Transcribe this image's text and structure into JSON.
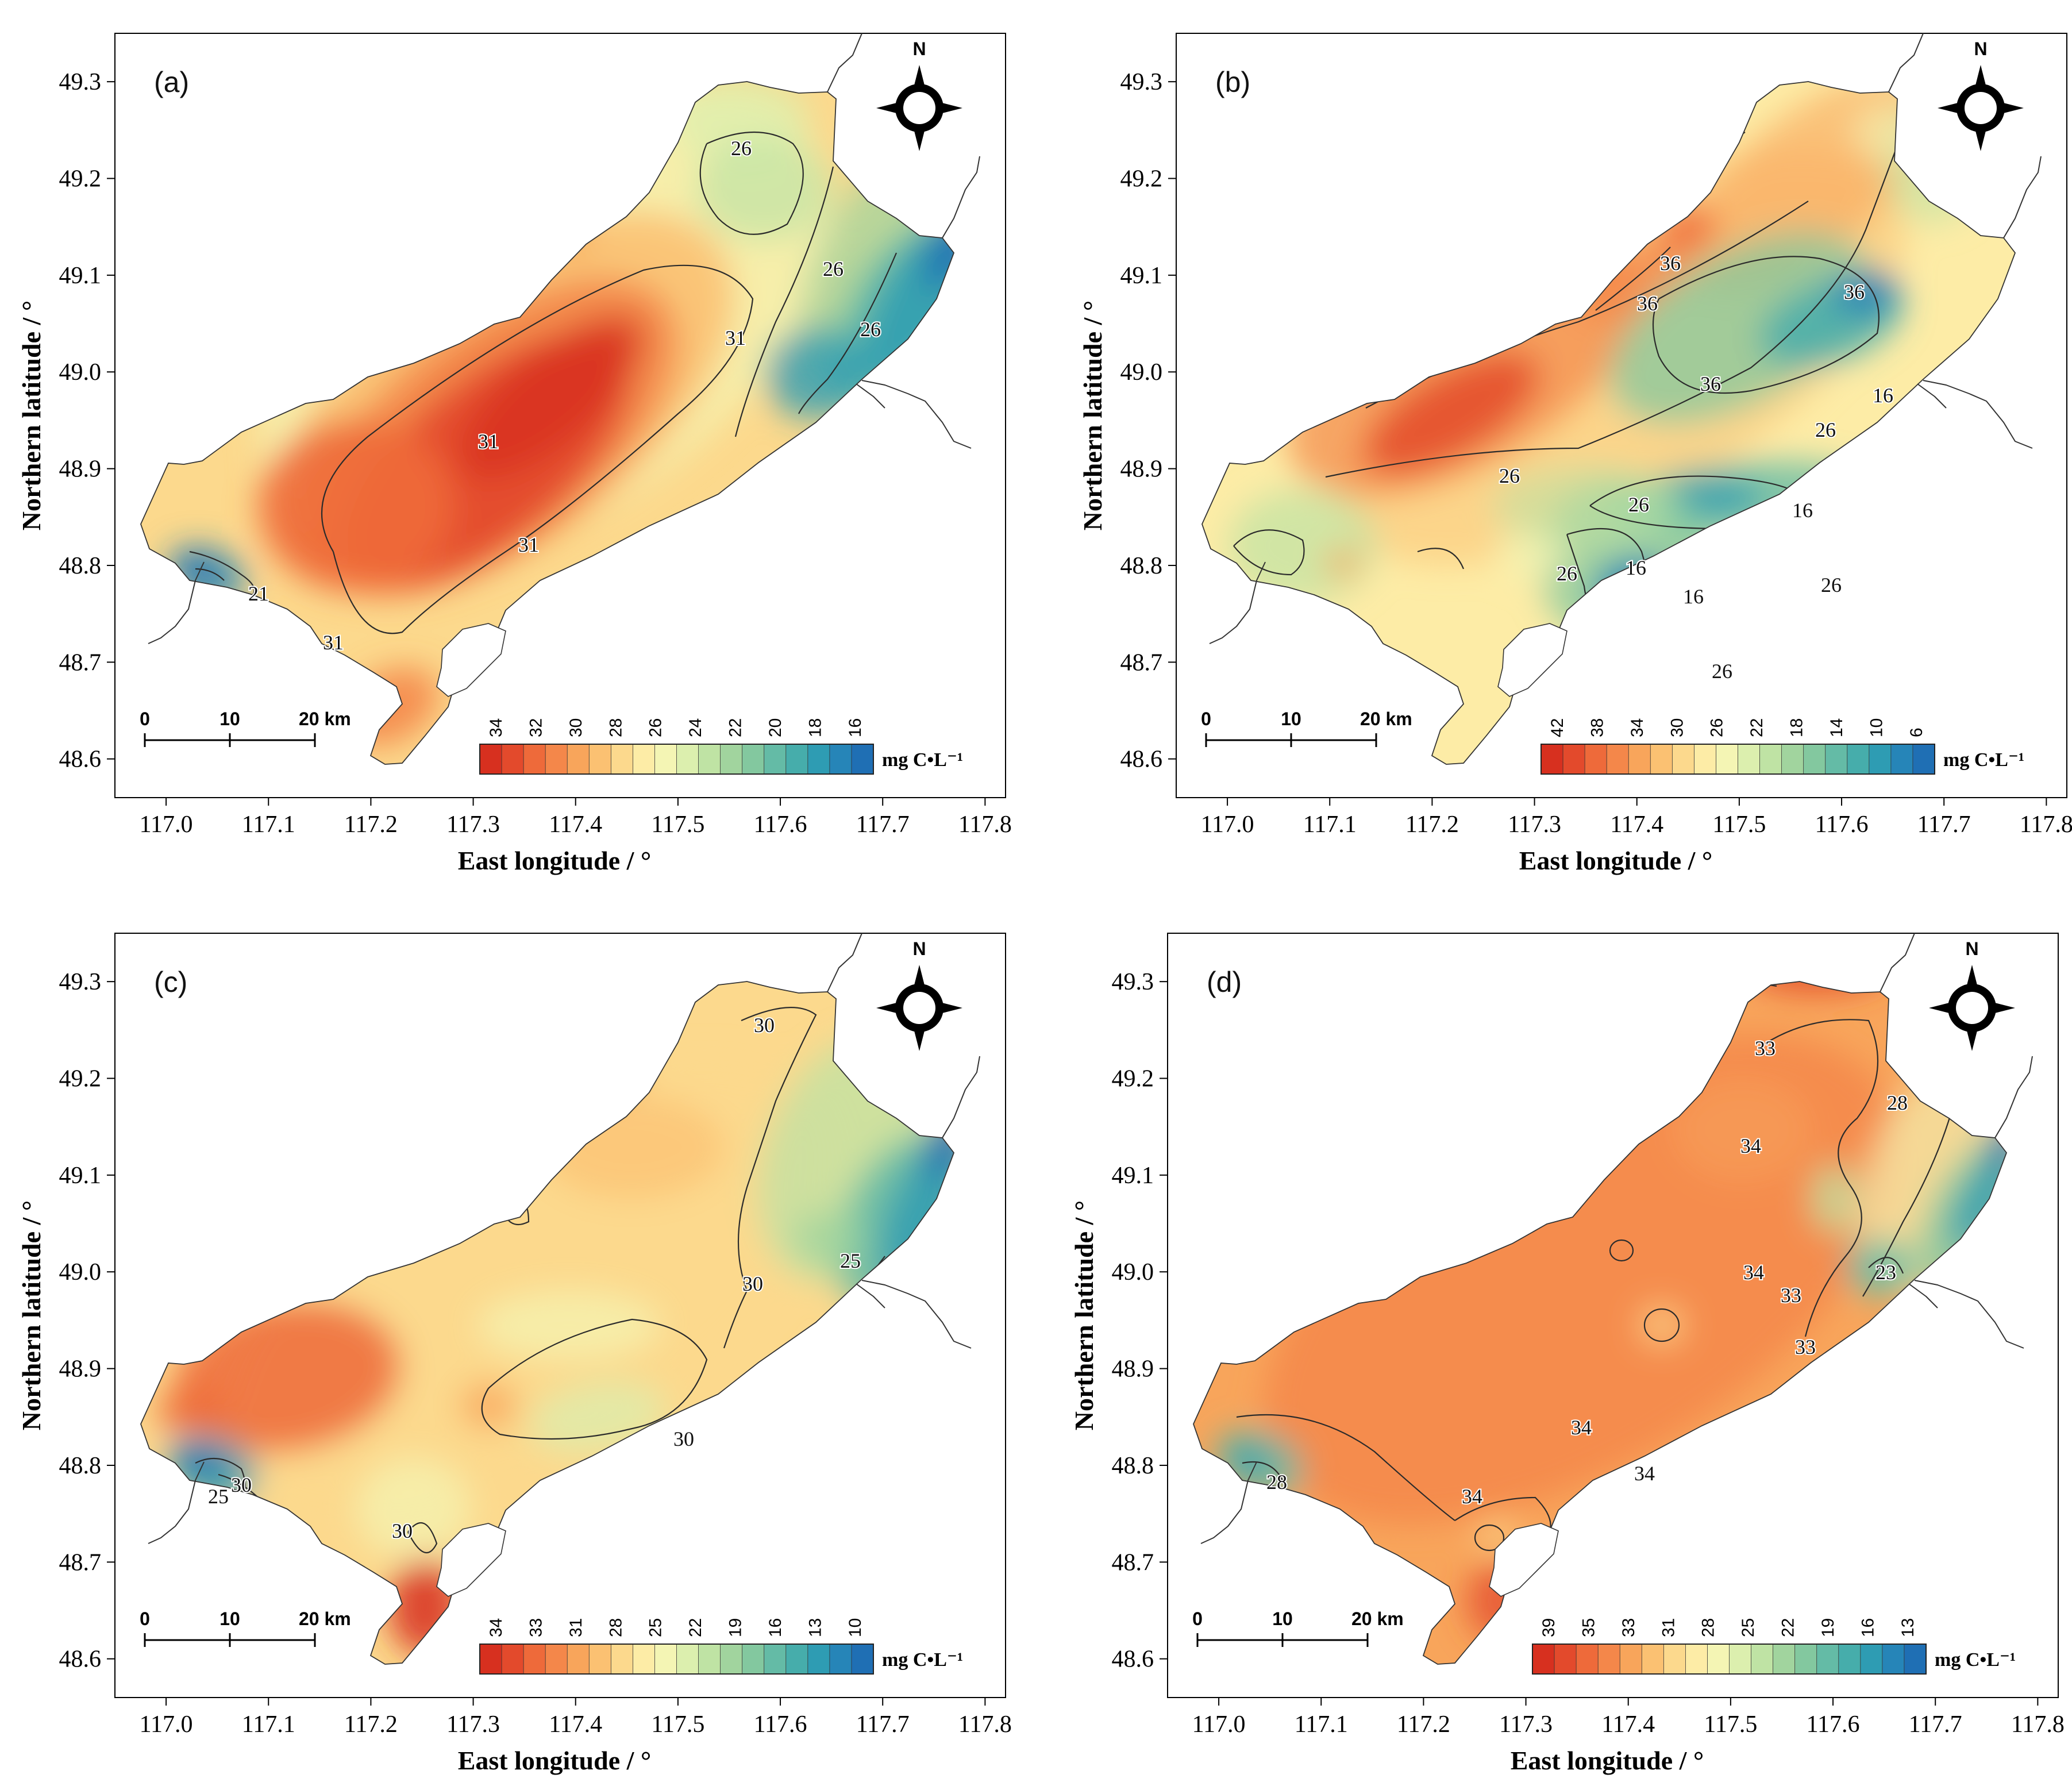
{
  "figure": {
    "x_axis_label": "East longitude / °",
    "y_axis_label": "Northern latitude / °",
    "x_ticks": [
      "117.0",
      "117.1",
      "117.2",
      "117.3",
      "117.4",
      "117.5",
      "117.6",
      "117.7",
      "117.8"
    ],
    "y_ticks": [
      "49.3",
      "49.2",
      "49.1",
      "49.0",
      "48.9",
      "48.8",
      "48.7",
      "48.6"
    ],
    "north_label": "N",
    "scale_bar": {
      "labels": [
        "0",
        "10",
        "20 km"
      ]
    },
    "legend_unit": "mg C•L⁻¹"
  },
  "colors": {
    "ramp": [
      "#d7301f",
      "#e34a2c",
      "#ee6a3a",
      "#f4874a",
      "#f8a55b",
      "#fbc172",
      "#fcd98d",
      "#fdeca6",
      "#f4f5b4",
      "#dcefae",
      "#bfe3a4",
      "#a1d49e",
      "#83c89f",
      "#64bba6",
      "#46adab",
      "#2e9cb3",
      "#2685b8",
      "#1f6fb4"
    ],
    "lake_outline": "#333333",
    "river": "#333333"
  },
  "chart_data": [
    {
      "type": "contour-map",
      "panel": "(a)",
      "colorbar_ticks": [
        "34",
        "32",
        "30",
        "28",
        "26",
        "24",
        "22",
        "20",
        "18",
        "16"
      ],
      "contour_labels": [
        "31",
        "31",
        "31",
        "31",
        "26",
        "26",
        "26",
        "21"
      ],
      "xlim": [
        116.95,
        117.82
      ],
      "ylim": [
        48.56,
        49.35
      ]
    },
    {
      "type": "contour-map",
      "panel": "(b)",
      "colorbar_ticks": [
        "42",
        "38",
        "34",
        "30",
        "26",
        "22",
        "18",
        "14",
        "10",
        "6"
      ],
      "contour_labels": [
        "36",
        "36",
        "36",
        "36",
        "26",
        "26",
        "26",
        "26",
        "26",
        "26",
        "16",
        "16",
        "16",
        "16"
      ],
      "xlim": [
        116.95,
        117.82
      ],
      "ylim": [
        48.56,
        49.35
      ]
    },
    {
      "type": "contour-map",
      "panel": "(c)",
      "colorbar_ticks": [
        "34",
        "33",
        "31",
        "28",
        "25",
        "22",
        "19",
        "16",
        "13",
        "10"
      ],
      "contour_labels": [
        "30",
        "30",
        "30",
        "30",
        "30",
        "25",
        "25"
      ],
      "xlim": [
        116.95,
        117.82
      ],
      "ylim": [
        48.56,
        49.35
      ]
    },
    {
      "type": "contour-map",
      "panel": "(d)",
      "colorbar_ticks": [
        "39",
        "35",
        "33",
        "31",
        "28",
        "25",
        "22",
        "19",
        "16",
        "13"
      ],
      "contour_labels": [
        "33",
        "33",
        "33",
        "34",
        "34",
        "34",
        "34",
        "34",
        "28",
        "28",
        "23"
      ],
      "xlim": [
        116.95,
        117.82
      ],
      "ylim": [
        48.56,
        49.35
      ]
    }
  ]
}
